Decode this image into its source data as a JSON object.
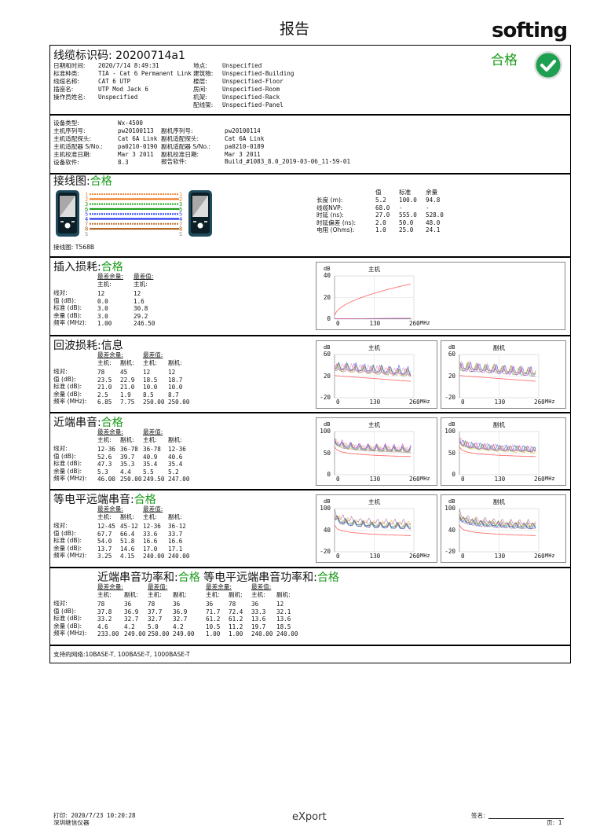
{
  "page_title": "报告",
  "brand": {
    "logo_text": "softing",
    "result": "合格",
    "result_icon": "check-circle-icon",
    "pass_color": "#1a9a1a"
  },
  "header": {
    "cable_id_label": "线缆标识码:",
    "cable_id": "20200714a1",
    "left": [
      {
        "label": "日期和时间:",
        "value": "2020/7/14 8:49:31"
      },
      {
        "label": "标准种类:",
        "value": "TIA - Cat 6 Permanent Link"
      },
      {
        "label": "线缆名称:",
        "value": "CAT 6 UTP"
      },
      {
        "label": "插座名:",
        "value": "UTP Mod Jack 6"
      },
      {
        "label": "操作员姓名:",
        "value": "Unspecified"
      }
    ],
    "right": [
      {
        "label": "地点:",
        "value": "Unspecified"
      },
      {
        "label": "建筑物:",
        "value": "Unspecified-Building"
      },
      {
        "label": "楼层:",
        "value": "Unspecified-Floor"
      },
      {
        "label": "房间:",
        "value": "Unspecified-Room"
      },
      {
        "label": "机架:",
        "value": "Unspecified-Rack"
      },
      {
        "label": "配线架:",
        "value": "Unspecified-Panel"
      }
    ]
  },
  "equipment": {
    "left": [
      {
        "label": "设备类型:",
        "value": "Wx-4500"
      },
      {
        "label": "主机序列号:",
        "value": "pw20100113"
      },
      {
        "label": "主机适配探头:",
        "value": "Cat 6A Link"
      },
      {
        "label": "主机适配器 S/No.:",
        "value": "pa0210-0190"
      },
      {
        "label": "主机校准日期:",
        "value": "Mar 3 2011"
      },
      {
        "label": "设备软件:",
        "value": "8.3"
      }
    ],
    "right": [
      {
        "label": "副机序列号:",
        "value": "pw20100114"
      },
      {
        "label": "副机适配探头:",
        "value": "Cat 6A Link"
      },
      {
        "label": "副机适配器 S/No.:",
        "value": "pa0210-0189"
      },
      {
        "label": "副机校准日期:",
        "value": "Mar 3 2011"
      },
      {
        "label": "报告软件:",
        "value": "Build_#1083_8.0_2019-03-06_11-59-01"
      }
    ]
  },
  "wiremap": {
    "title": "接线图",
    "sep": ":",
    "result": "合格",
    "pins": [
      "1",
      "2",
      "3",
      "6",
      "5",
      "4",
      "7",
      "8",
      "S"
    ],
    "pin_colors": [
      "#f08a3c",
      "#f07a20",
      "#22aa22",
      "#119911",
      "#3344ff",
      "#1122ee",
      "#b8702a",
      "#a85a10",
      "#888888"
    ],
    "scheme_label": "接线图:",
    "scheme": "T568B",
    "length_table": {
      "headers": [
        "值",
        "标准",
        "余量"
      ],
      "rows": [
        {
          "label": "长度 (m):",
          "values": [
            "5.2",
            "100.0",
            "94.8"
          ]
        },
        {
          "label": "线缆NVP:",
          "values": [
            "68.0",
            "-",
            "-"
          ]
        },
        {
          "label": "时延 (ns):",
          "values": [
            "27.0",
            "555.0",
            "528.0"
          ]
        },
        {
          "label": "时延偏差 (ns):",
          "values": [
            "2.0",
            "50.0",
            "48.0"
          ]
        },
        {
          "label": "电阻 (Ohms):",
          "values": [
            "1.0",
            "25.0",
            "24.1"
          ]
        }
      ]
    }
  },
  "row_labels": [
    "线对:",
    "值 (dB):",
    "标准 (dB):",
    "余量 (dB):",
    "频率 (MHz):"
  ],
  "sections": {
    "il": {
      "title": "插入损耗",
      "sep": ":",
      "result": "合格",
      "pass": true,
      "groups": [
        "最差余量:",
        "最差值:"
      ],
      "sub": [
        "主机:",
        "主机:"
      ],
      "rows": [
        [
          "12",
          "12"
        ],
        [
          "0.0",
          "1.6"
        ],
        [
          "3.0",
          "30.8"
        ],
        [
          "3.0",
          "29.2"
        ],
        [
          "1.00",
          "246.50"
        ]
      ],
      "charts": [
        {
          "title": "主机",
          "y_unit": "dB",
          "x_unit": "MHz",
          "y_range": [
            0,
            40
          ],
          "y_ticks": [
            "0",
            "20",
            "40"
          ],
          "x_ticks": [
            "0",
            "130",
            "260"
          ]
        }
      ]
    },
    "rl": {
      "title": "回波损耗",
      "sep": ":",
      "result": "信息",
      "pass": false,
      "groups": [
        "最差余量:",
        "最差值:"
      ],
      "sub": [
        "主机:",
        "副机:",
        "主机:",
        "副机:"
      ],
      "rows": [
        [
          "78",
          "45",
          "12",
          "12"
        ],
        [
          "23.5",
          "22.9",
          "18.5",
          "18.7"
        ],
        [
          "21.0",
          "21.0",
          "10.0",
          "10.0"
        ],
        [
          "2.5",
          "1.9",
          "8.5",
          "8.7"
        ],
        [
          "6.85",
          "7.75",
          "250.00",
          "250.00"
        ]
      ],
      "charts": [
        {
          "title": "主机",
          "y_unit": "dB",
          "x_unit": "MHz",
          "y_range": [
            -20,
            60
          ],
          "y_ticks": [
            "-20",
            "20",
            "60"
          ],
          "x_ticks": [
            "0",
            "130",
            "260"
          ]
        },
        {
          "title": "副机",
          "y_unit": "dB",
          "x_unit": "MHz",
          "y_range": [
            -20,
            60
          ],
          "y_ticks": [
            "-20",
            "20",
            "60"
          ],
          "x_ticks": [
            "0",
            "130",
            "260"
          ]
        }
      ]
    },
    "next": {
      "title": "近端串音",
      "sep": ":",
      "result": "合格",
      "pass": true,
      "groups": [
        "最差余量:",
        "最差值:"
      ],
      "sub": [
        "主机:",
        "副机:",
        "主机:",
        "副机:"
      ],
      "rows": [
        [
          "12-36",
          "36-78",
          "36-78",
          "12-36"
        ],
        [
          "52.6",
          "39.7",
          "40.9",
          "40.6"
        ],
        [
          "47.3",
          "35.3",
          "35.4",
          "35.4"
        ],
        [
          "5.3",
          "4.4",
          "5.5",
          "5.2"
        ],
        [
          "46.00",
          "250.00",
          "249.50",
          "247.00"
        ]
      ],
      "charts": [
        {
          "title": "主机",
          "y_unit": "dB",
          "x_unit": "MHz",
          "y_range": [
            0,
            100
          ],
          "y_ticks": [
            "0",
            "50",
            "100"
          ],
          "x_ticks": [
            "0",
            "130",
            "260"
          ]
        },
        {
          "title": "副机",
          "y_unit": "dB",
          "x_unit": "MHz",
          "y_range": [
            0,
            100
          ],
          "y_ticks": [
            "0",
            "50",
            "100"
          ],
          "x_ticks": [
            "0",
            "130",
            "260"
          ]
        }
      ]
    },
    "fext": {
      "title": "等电平远端串音",
      "sep": ":",
      "result": "合格",
      "pass": true,
      "groups": [
        "最差余量:",
        "最差值:"
      ],
      "sub": [
        "主机:",
        "副机:",
        "主机:",
        "副机:"
      ],
      "rows": [
        [
          "12-45",
          "45-12",
          "12-36",
          "36-12"
        ],
        [
          "67.7",
          "66.4",
          "33.6",
          "33.7"
        ],
        [
          "54.0",
          "51.8",
          "16.6",
          "16.6"
        ],
        [
          "13.7",
          "14.6",
          "17.0",
          "17.1"
        ],
        [
          "3.25",
          "4.15",
          "240.00",
          "240.00"
        ]
      ],
      "charts": [
        {
          "title": "主机",
          "y_unit": "dB",
          "x_unit": "MHz",
          "y_range": [
            -20,
            100
          ],
          "y_ticks": [
            "-20",
            "40",
            "100"
          ],
          "x_ticks": [
            "0",
            "130",
            "260"
          ]
        },
        {
          "title": "副机",
          "y_unit": "dB",
          "x_unit": "MHz",
          "y_range": [
            -20,
            100
          ],
          "y_ticks": [
            "-20",
            "40",
            "100"
          ],
          "x_ticks": [
            "0",
            "130",
            "260"
          ]
        }
      ]
    },
    "ps": {
      "title": "近端串音功率和",
      "sep": ":",
      "result": "合格",
      "title2": "等电平远端串音功率和",
      "result2": "合格",
      "pass": true,
      "groups": [
        "最差余量:",
        "最差值:",
        "最差余量:",
        "最差值:"
      ],
      "sub": [
        "主机:",
        "副机:",
        "主机:",
        "副机:",
        "主机:",
        "副机:",
        "主机:",
        "副机:"
      ],
      "rows": [
        [
          "78",
          "36",
          "78",
          "36",
          "36",
          "78",
          "36",
          "12"
        ],
        [
          "37.8",
          "36.9",
          "37.7",
          "36.9",
          "71.7",
          "72.4",
          "33.3",
          "32.1"
        ],
        [
          "33.2",
          "32.7",
          "32.7",
          "32.7",
          "61.2",
          "61.2",
          "13.6",
          "13.6"
        ],
        [
          "4.6",
          "4.2",
          "5.0",
          "4.2",
          "10.5",
          "11.2",
          "19.7",
          "18.5"
        ],
        [
          "233.00",
          "249.00",
          "250.00",
          "249.00",
          "1.00",
          "1.00",
          "240.00",
          "240.00"
        ]
      ]
    }
  },
  "networks": "支持的网络:10BASE-T, 100BASE-T, 1000BASE-T",
  "footer": {
    "print_label": "打印:",
    "print_time": "2020/7/23 10:20:28",
    "company": "深圳继信仪器",
    "export_logo": "eXport",
    "sign_label": "签名:",
    "page_label": "页:",
    "page": "1"
  }
}
